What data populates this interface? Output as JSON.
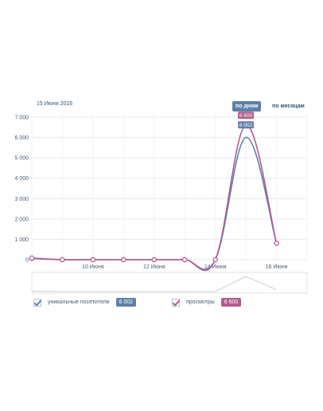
{
  "header": {
    "date": "15 Июня 2016",
    "toggle_days": "по дням",
    "toggle_months": "по месяцам"
  },
  "legend": {
    "unique_label": "уникальные посетители",
    "unique_value": "6 002",
    "views_label": "просмотры",
    "views_value": "6 600"
  },
  "colors": {
    "unique": "#5e81a8",
    "views": "#b05c8f",
    "grid": "#e6e9ee",
    "axis_text": "#4a5a6a"
  },
  "chart_data": {
    "type": "line",
    "title": "",
    "xlabel": "",
    "ylabel": "",
    "ylim": [
      0,
      7000
    ],
    "yticks": [
      "0",
      "1 000",
      "2 000",
      "3 000",
      "4 000",
      "5 000",
      "6 000",
      "7 000"
    ],
    "ytick_values": [
      0,
      1000,
      2000,
      3000,
      4000,
      5000,
      6000,
      7000
    ],
    "x": [
      8,
      9,
      10,
      11,
      12,
      13,
      14,
      15,
      16
    ],
    "xticks": [
      "10 Июня",
      "12 Июня",
      "14 Июня",
      "16 Июня"
    ],
    "xtick_values": [
      10,
      12,
      14,
      16
    ],
    "xlim": [
      8,
      17
    ],
    "series": [
      {
        "name": "уникальные посетители",
        "values": [
          60,
          0,
          0,
          0,
          0,
          0,
          0,
          6002,
          800
        ]
      },
      {
        "name": "просмотры",
        "values": [
          80,
          0,
          0,
          0,
          0,
          0,
          0,
          6600,
          800
        ]
      }
    ],
    "highlight_index": 7,
    "grid": true,
    "legend_position": "bottom"
  }
}
